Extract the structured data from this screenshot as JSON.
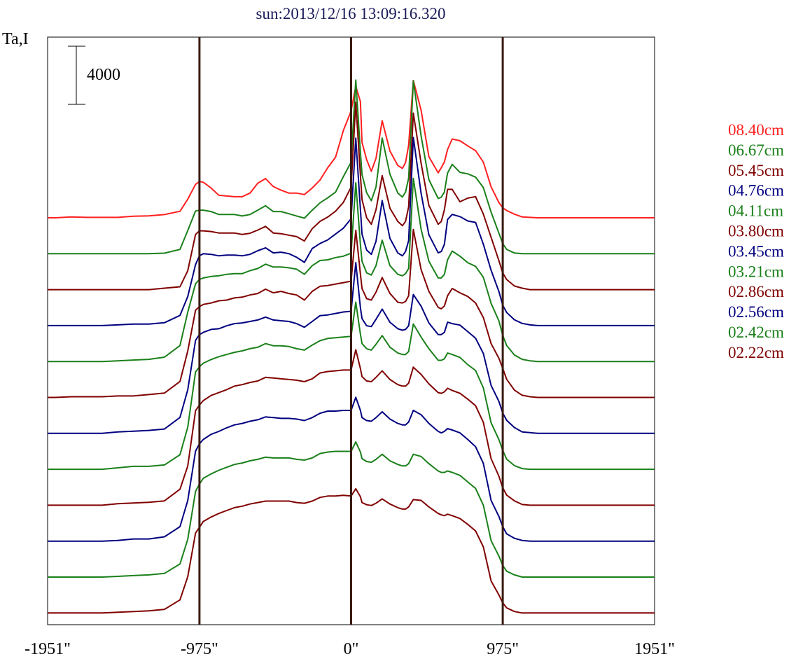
{
  "chart_data": {
    "type": "line",
    "title": "sun:2013/12/16 13:09:16.320",
    "ylabel": "Ta,I",
    "scale_bar_label": "4000",
    "scale_bar_value": 4000,
    "xlim": [
      -1951,
      1951
    ],
    "x_ticks": [
      {
        "value": -1951,
        "label": "-1951\""
      },
      {
        "value": -975,
        "label": "-975\""
      },
      {
        "value": 0,
        "label": "0\""
      },
      {
        "value": 975,
        "label": "975\""
      },
      {
        "value": 1951,
        "label": "1951\""
      }
    ],
    "vertical_lines": [
      -975,
      0,
      975
    ],
    "vertical_line_color": "#3a1a10",
    "colors": {
      "red": "#ff2020",
      "green": "#1a801a",
      "darkred": "#800000",
      "blue": "#000080",
      "title": "#1a1a5a"
    },
    "x": [
      -1951,
      -1900,
      -1800,
      -1700,
      -1600,
      -1500,
      -1400,
      -1300,
      -1200,
      -1100,
      -1050,
      -1000,
      -975,
      -950,
      -900,
      -850,
      -800,
      -750,
      -700,
      -650,
      -600,
      -550,
      -500,
      -450,
      -400,
      -350,
      -300,
      -250,
      -200,
      -150,
      -100,
      -50,
      0,
      30,
      60,
      70,
      100,
      130,
      160,
      200,
      250,
      300,
      330,
      350,
      370,
      400,
      450,
      500,
      560,
      580,
      600,
      620,
      650,
      700,
      750,
      800,
      850,
      900,
      950,
      975,
      1000,
      1050,
      1100,
      1150,
      1200,
      1300,
      1400,
      1500,
      1600,
      1700,
      1800,
      1900,
      1951
    ],
    "series": [
      {
        "name": "08.40cm",
        "color": "#ff2020",
        "values": [
          0,
          0,
          60,
          30,
          30,
          30,
          110,
          130,
          220,
          450,
          1280,
          2300,
          2500,
          2450,
          2050,
          1550,
          1500,
          1450,
          1450,
          1700,
          2380,
          2700,
          2150,
          1900,
          1700,
          1700,
          1600,
          2050,
          2600,
          3450,
          4170,
          6000,
          7350,
          9050,
          8000,
          5200,
          4000,
          3200,
          4100,
          6680,
          4600,
          3600,
          3400,
          3800,
          5000,
          9450,
          7400,
          4200,
          3100,
          3450,
          3850,
          4700,
          5420,
          5300,
          4950,
          4620,
          3830,
          2130,
          1050,
          690,
          500,
          250,
          60,
          30,
          0,
          0,
          0,
          0,
          0,
          0,
          0,
          0,
          0
        ]
      },
      {
        "name": "06.67cm",
        "color": "#1a801a",
        "values": [
          0,
          0,
          0,
          0,
          0,
          0,
          0,
          0,
          40,
          300,
          1600,
          2940,
          3000,
          3000,
          2900,
          2700,
          2700,
          2700,
          2600,
          2700,
          3000,
          3300,
          2900,
          2900,
          2750,
          2600,
          2450,
          3000,
          3500,
          3850,
          4240,
          5300,
          6300,
          11950,
          7000,
          5450,
          4200,
          3650,
          4600,
          7960,
          5470,
          4180,
          3900,
          4250,
          5200,
          11900,
          8100,
          5100,
          3800,
          3900,
          4250,
          5550,
          6150,
          5600,
          5500,
          5270,
          4550,
          2860,
          1420,
          700,
          300,
          50,
          0,
          0,
          0,
          0,
          0,
          0,
          0,
          0,
          0,
          0,
          0
        ]
      },
      {
        "name": "05.45cm",
        "color": "#800000",
        "values": [
          0,
          0,
          0,
          0,
          0,
          0,
          0,
          0,
          100,
          200,
          1300,
          3800,
          4050,
          4050,
          4000,
          3900,
          3900,
          3900,
          3800,
          3880,
          4100,
          4350,
          3900,
          3850,
          3750,
          3650,
          3350,
          4200,
          4700,
          5000,
          5400,
          6000,
          7050,
          12900,
          7900,
          6200,
          4950,
          4500,
          5500,
          7850,
          5600,
          4700,
          4400,
          4700,
          5700,
          12150,
          8700,
          5800,
          4500,
          4700,
          5500,
          6900,
          6900,
          6050,
          6300,
          6400,
          5200,
          3600,
          2000,
          1150,
          700,
          250,
          100,
          0,
          0,
          0,
          0,
          0,
          0,
          0,
          0,
          0,
          0
        ]
      },
      {
        "name": "04.76cm",
        "color": "#000080",
        "values": [
          0,
          0,
          0,
          0,
          0,
          50,
          100,
          100,
          200,
          700,
          2000,
          4200,
          4800,
          4950,
          4900,
          4800,
          4850,
          4850,
          4800,
          4900,
          5150,
          5350,
          5000,
          5050,
          4950,
          4700,
          4350,
          5300,
          5650,
          5900,
          6300,
          6700,
          7350,
          12900,
          8000,
          6300,
          5200,
          4900,
          5800,
          8600,
          6000,
          5000,
          4800,
          5100,
          5850,
          12950,
          9100,
          6250,
          5000,
          5100,
          5600,
          7300,
          7650,
          7500,
          7200,
          7100,
          5600,
          3800,
          2350,
          1400,
          900,
          400,
          150,
          50,
          0,
          0,
          0,
          0,
          0,
          0,
          0,
          0,
          0
        ]
      },
      {
        "name": "04.11cm",
        "color": "#1a801a",
        "values": [
          0,
          0,
          0,
          0,
          0,
          50,
          100,
          150,
          300,
          1100,
          3400,
          5350,
          5650,
          5750,
          5850,
          5900,
          6000,
          6050,
          6050,
          6250,
          6400,
          6700,
          6500,
          6500,
          6450,
          6350,
          6000,
          6600,
          6950,
          7000,
          7150,
          7250,
          7450,
          12300,
          8050,
          6900,
          6100,
          5950,
          6600,
          8350,
          6600,
          6000,
          5900,
          6050,
          6400,
          12600,
          9100,
          6900,
          5750,
          5750,
          6000,
          7000,
          7600,
          7250,
          6800,
          6550,
          5800,
          4000,
          2800,
          1800,
          1100,
          450,
          150,
          50,
          0,
          0,
          0,
          0,
          0,
          0,
          0,
          0,
          0
        ]
      },
      {
        "name": "03.80cm",
        "color": "#800000",
        "values": [
          0,
          0,
          50,
          50,
          50,
          100,
          100,
          200,
          300,
          1100,
          3200,
          6000,
          6250,
          6400,
          6500,
          6650,
          6700,
          6850,
          6900,
          7050,
          7150,
          7450,
          7200,
          7300,
          7150,
          7050,
          6700,
          7300,
          7650,
          7700,
          7800,
          7900,
          8000,
          11500,
          8500,
          7500,
          6800,
          6700,
          7250,
          8250,
          7150,
          6550,
          6500,
          6600,
          7000,
          11550,
          8800,
          7300,
          6200,
          6100,
          6300,
          7000,
          7500,
          7200,
          6950,
          6500,
          5500,
          3700,
          2700,
          2000,
          1250,
          500,
          150,
          50,
          0,
          0,
          0,
          0,
          0,
          0,
          0,
          0,
          0
        ]
      },
      {
        "name": "03.45cm",
        "color": "#000080",
        "values": [
          0,
          0,
          0,
          0,
          0,
          100,
          150,
          200,
          300,
          1100,
          3000,
          6400,
          6800,
          6950,
          7150,
          7200,
          7400,
          7550,
          7600,
          7700,
          7800,
          8000,
          7800,
          7750,
          7700,
          7550,
          7300,
          7700,
          8100,
          8150,
          8250,
          8350,
          8400,
          11750,
          8650,
          7900,
          7400,
          7350,
          7850,
          8550,
          7650,
          7200,
          7100,
          7150,
          7400,
          9550,
          8750,
          7600,
          6800,
          6800,
          6950,
          7650,
          7550,
          7450,
          7000,
          6550,
          5500,
          3300,
          2200,
          1400,
          900,
          400,
          100,
          50,
          0,
          0,
          0,
          0,
          0,
          0,
          0,
          0,
          0
        ]
      },
      {
        "name": "03.21cm",
        "color": "#1a801a",
        "values": [
          0,
          0,
          0,
          0,
          0,
          100,
          200,
          200,
          300,
          1000,
          2900,
          6700,
          7050,
          7300,
          7550,
          7750,
          7900,
          8050,
          8150,
          8300,
          8400,
          8650,
          8500,
          8500,
          8450,
          8300,
          8200,
          8550,
          8850,
          9000,
          9050,
          9100,
          9150,
          11500,
          9300,
          8650,
          8300,
          8200,
          8600,
          9200,
          8400,
          8000,
          7900,
          7900,
          8100,
          10000,
          9100,
          8300,
          7500,
          7500,
          7600,
          8000,
          7900,
          7700,
          7200,
          6800,
          5600,
          3200,
          2050,
          1300,
          700,
          250,
          50,
          0,
          0,
          0,
          0,
          0,
          0,
          0,
          0,
          0,
          0
        ]
      },
      {
        "name": "02.86cm",
        "color": "#800000",
        "values": [
          0,
          0,
          0,
          0,
          0,
          100,
          150,
          200,
          300,
          1100,
          2700,
          6500,
          6900,
          7200,
          7550,
          7750,
          7950,
          8200,
          8300,
          8450,
          8550,
          8800,
          8750,
          8700,
          8650,
          8600,
          8500,
          8700,
          9100,
          9200,
          9250,
          9300,
          9300,
          10700,
          9400,
          8850,
          8550,
          8500,
          8800,
          9250,
          8650,
          8300,
          8200,
          8200,
          8400,
          9500,
          9000,
          8350,
          7750,
          7700,
          7800,
          8050,
          7900,
          7700,
          7300,
          6850,
          5700,
          3200,
          2000,
          1200,
          700,
          300,
          50,
          0,
          0,
          0,
          0,
          0,
          0,
          0,
          0,
          0,
          0
        ]
      },
      {
        "name": "02.56cm",
        "color": "#000080",
        "values": [
          0,
          0,
          0,
          0,
          0,
          50,
          150,
          150,
          300,
          1000,
          2800,
          6200,
          6700,
          7000,
          7350,
          7550,
          7800,
          8000,
          8100,
          8250,
          8350,
          8550,
          8500,
          8450,
          8450,
          8400,
          8300,
          8500,
          8800,
          8950,
          8950,
          9000,
          9000,
          9900,
          9000,
          8500,
          8300,
          8250,
          8500,
          8900,
          8400,
          8100,
          8000,
          8000,
          8200,
          9000,
          8700,
          8100,
          7550,
          7450,
          7550,
          7750,
          7650,
          7450,
          7000,
          6500,
          5350,
          2800,
          1700,
          1000,
          500,
          200,
          50,
          0,
          0,
          0,
          0,
          0,
          0,
          0,
          0,
          0,
          0
        ]
      },
      {
        "name": "02.42cm",
        "color": "#1a801a",
        "values": [
          0,
          0,
          0,
          0,
          0,
          50,
          100,
          150,
          250,
          900,
          2600,
          5900,
          6400,
          6800,
          7100,
          7350,
          7550,
          7750,
          7850,
          8000,
          8100,
          8250,
          8200,
          8200,
          8200,
          8100,
          8050,
          8200,
          8500,
          8600,
          8650,
          8650,
          8650,
          9300,
          8600,
          8150,
          7950,
          7900,
          8100,
          8450,
          8000,
          7750,
          7650,
          7650,
          7800,
          8450,
          8300,
          7800,
          7300,
          7200,
          7200,
          7300,
          7200,
          7000,
          6550,
          6100,
          4950,
          2500,
          1450,
          800,
          400,
          150,
          0,
          0,
          0,
          0,
          0,
          0,
          0,
          0,
          0,
          0,
          0
        ]
      },
      {
        "name": "02.22cm",
        "color": "#800000",
        "values": [
          0,
          0,
          0,
          0,
          0,
          50,
          100,
          150,
          250,
          900,
          2500,
          5500,
          5900,
          6300,
          6600,
          6850,
          7050,
          7250,
          7350,
          7500,
          7600,
          7700,
          7700,
          7700,
          7700,
          7600,
          7550,
          7700,
          7950,
          8050,
          8050,
          8100,
          8050,
          8550,
          8000,
          7600,
          7450,
          7400,
          7550,
          7850,
          7500,
          7250,
          7150,
          7150,
          7300,
          7800,
          7750,
          7300,
          6850,
          6750,
          6700,
          6800,
          6700,
          6500,
          6100,
          5650,
          4550,
          2200,
          1250,
          700,
          350,
          100,
          0,
          0,
          0,
          0,
          0,
          0,
          0,
          0,
          0,
          0,
          0
        ]
      }
    ]
  }
}
